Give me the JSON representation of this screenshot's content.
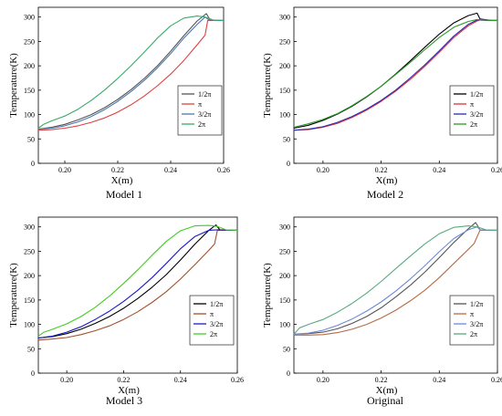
{
  "chart_data": [
    {
      "type": "line",
      "caption": "Model 1",
      "xlabel": "X(m)",
      "ylabel": "Temperature(K)",
      "xlim": [
        0.19,
        0.26
      ],
      "ylim": [
        0,
        320
      ],
      "xticks": [
        "0.20",
        "0.22",
        "0.24",
        "0.26"
      ],
      "xtick_values": [
        0.2,
        0.22,
        0.24,
        0.26
      ],
      "yticks": [
        "0",
        "50",
        "100",
        "150",
        "200",
        "250",
        "300"
      ],
      "ytick_values": [
        0,
        50,
        100,
        150,
        200,
        250,
        300
      ],
      "legend_position": "bottom-right",
      "series": [
        {
          "name": "1/2π",
          "color": "#555555",
          "x": [
            0.19,
            0.195,
            0.2,
            0.205,
            0.21,
            0.215,
            0.22,
            0.225,
            0.23,
            0.235,
            0.24,
            0.245,
            0.25,
            0.2535,
            0.255,
            0.258,
            0.26
          ],
          "y": [
            70,
            74,
            80,
            89,
            100,
            114,
            131,
            151,
            174,
            200,
            230,
            262,
            292,
            307,
            293,
            293,
            293
          ]
        },
        {
          "name": "π",
          "color": "#e04040",
          "x": [
            0.19,
            0.195,
            0.2,
            0.205,
            0.21,
            0.215,
            0.22,
            0.225,
            0.23,
            0.235,
            0.24,
            0.245,
            0.25,
            0.253,
            0.254,
            0.258,
            0.26
          ],
          "y": [
            68,
            69,
            72,
            77,
            84,
            93,
            105,
            120,
            138,
            159,
            183,
            211,
            243,
            263,
            293,
            293,
            293
          ]
        },
        {
          "name": "3/2π",
          "color": "#4a78b0",
          "x": [
            0.19,
            0.195,
            0.2,
            0.205,
            0.21,
            0.215,
            0.22,
            0.225,
            0.23,
            0.235,
            0.24,
            0.245,
            0.25,
            0.253,
            0.2545,
            0.258,
            0.26
          ],
          "y": [
            70,
            72,
            77,
            85,
            96,
            110,
            127,
            147,
            170,
            196,
            225,
            257,
            285,
            300,
            294,
            293,
            293
          ]
        },
        {
          "name": "2π",
          "color": "#3aaa6a",
          "x": [
            0.19,
            0.192,
            0.195,
            0.2,
            0.205,
            0.21,
            0.215,
            0.22,
            0.225,
            0.23,
            0.235,
            0.24,
            0.245,
            0.25,
            0.253,
            0.256,
            0.26
          ],
          "y": [
            72,
            80,
            87,
            97,
            111,
            129,
            150,
            174,
            200,
            228,
            257,
            282,
            298,
            302,
            300,
            294,
            293
          ]
        }
      ]
    },
    {
      "type": "line",
      "caption": "Model 2",
      "xlabel": "X(m)",
      "ylabel": "Temperature(K)",
      "xlim": [
        0.19,
        0.26
      ],
      "ylim": [
        0,
        320
      ],
      "xticks": [
        "0.20",
        "0.22",
        "0.24",
        "0.26"
      ],
      "xtick_values": [
        0.2,
        0.22,
        0.24,
        0.26
      ],
      "yticks": [
        "0",
        "50",
        "100",
        "150",
        "200",
        "250",
        "300"
      ],
      "ytick_values": [
        0,
        50,
        100,
        150,
        200,
        250,
        300
      ],
      "legend_position": "bottom-right",
      "series": [
        {
          "name": "1/2π",
          "color": "#000000",
          "x": [
            0.19,
            0.195,
            0.2,
            0.205,
            0.21,
            0.215,
            0.22,
            0.225,
            0.23,
            0.235,
            0.24,
            0.245,
            0.25,
            0.253,
            0.254,
            0.258,
            0.26
          ],
          "y": [
            72,
            78,
            88,
            101,
            117,
            136,
            158,
            183,
            210,
            238,
            265,
            288,
            303,
            308,
            296,
            293,
            293
          ]
        },
        {
          "name": "π",
          "color": "#e03030",
          "x": [
            0.19,
            0.195,
            0.2,
            0.205,
            0.21,
            0.215,
            0.22,
            0.225,
            0.23,
            0.235,
            0.24,
            0.245,
            0.25,
            0.253,
            0.254,
            0.258,
            0.26
          ],
          "y": [
            68,
            69,
            74,
            82,
            94,
            109,
            127,
            148,
            172,
            199,
            228,
            258,
            282,
            292,
            294,
            293,
            293
          ]
        },
        {
          "name": "3/2π",
          "color": "#2a2ab0",
          "x": [
            0.19,
            0.195,
            0.2,
            0.205,
            0.21,
            0.215,
            0.22,
            0.225,
            0.23,
            0.235,
            0.24,
            0.245,
            0.25,
            0.253,
            0.254,
            0.258,
            0.26
          ],
          "y": [
            68,
            70,
            75,
            84,
            96,
            111,
            129,
            150,
            175,
            202,
            231,
            261,
            285,
            294,
            294,
            293,
            293
          ]
        },
        {
          "name": "2π",
          "color": "#2a9a2a",
          "x": [
            0.19,
            0.195,
            0.2,
            0.205,
            0.21,
            0.215,
            0.22,
            0.225,
            0.23,
            0.235,
            0.24,
            0.245,
            0.25,
            0.253,
            0.256,
            0.258,
            0.26
          ],
          "y": [
            74,
            81,
            90,
            102,
            118,
            137,
            158,
            182,
            207,
            233,
            258,
            279,
            291,
            295,
            294,
            293,
            293
          ]
        }
      ]
    },
    {
      "type": "line",
      "caption": "Model 3",
      "xlabel": "X(m)",
      "ylabel": "Temperature(K)",
      "xlim": [
        0.19,
        0.26
      ],
      "ylim": [
        0,
        320
      ],
      "xticks": [
        "0.20",
        "0.22",
        "0.24",
        "0.26"
      ],
      "xtick_values": [
        0.2,
        0.22,
        0.24,
        0.26
      ],
      "yticks": [
        "0",
        "50",
        "100",
        "150",
        "200",
        "250",
        "300"
      ],
      "ytick_values": [
        0,
        50,
        100,
        150,
        200,
        250,
        300
      ],
      "legend_position": "bottom-right",
      "series": [
        {
          "name": "1/2π",
          "color": "#000000",
          "x": [
            0.19,
            0.195,
            0.2,
            0.205,
            0.21,
            0.215,
            0.22,
            0.225,
            0.23,
            0.235,
            0.24,
            0.245,
            0.25,
            0.2525,
            0.254,
            0.258,
            0.26
          ],
          "y": [
            72,
            75,
            81,
            90,
            102,
            116,
            133,
            153,
            176,
            202,
            232,
            264,
            293,
            304,
            293,
            293,
            293
          ]
        },
        {
          "name": "π",
          "color": "#a0522d",
          "x": [
            0.19,
            0.195,
            0.2,
            0.205,
            0.21,
            0.215,
            0.22,
            0.225,
            0.23,
            0.235,
            0.24,
            0.245,
            0.25,
            0.252,
            0.253,
            0.258,
            0.26
          ],
          "y": [
            68,
            70,
            73,
            79,
            87,
            97,
            110,
            126,
            145,
            167,
            193,
            222,
            252,
            265,
            293,
            293,
            293
          ]
        },
        {
          "name": "3/2π",
          "color": "#1a1ac8",
          "x": [
            0.19,
            0.195,
            0.2,
            0.205,
            0.21,
            0.215,
            0.22,
            0.225,
            0.23,
            0.235,
            0.24,
            0.245,
            0.25,
            0.253,
            0.254,
            0.258,
            0.26
          ],
          "y": [
            72,
            76,
            84,
            95,
            110,
            127,
            147,
            170,
            196,
            225,
            255,
            280,
            293,
            294,
            294,
            293,
            293
          ]
        },
        {
          "name": "2π",
          "color": "#44cc22",
          "x": [
            0.19,
            0.192,
            0.195,
            0.2,
            0.205,
            0.21,
            0.215,
            0.22,
            0.225,
            0.23,
            0.235,
            0.24,
            0.245,
            0.25,
            0.253,
            0.256,
            0.26
          ],
          "y": [
            76,
            84,
            90,
            101,
            116,
            135,
            158,
            184,
            212,
            242,
            270,
            292,
            302,
            303,
            301,
            294,
            293
          ]
        }
      ]
    },
    {
      "type": "line",
      "caption": "Original",
      "xlabel": "X(m)",
      "ylabel": "Temperature(K)",
      "xlim": [
        0.19,
        0.26
      ],
      "ylim": [
        0,
        320
      ],
      "xticks": [
        "0.20",
        "0.22",
        "0.24",
        "0.26"
      ],
      "xtick_values": [
        0.2,
        0.22,
        0.24,
        0.26
      ],
      "yticks": [
        "0",
        "50",
        "100",
        "150",
        "200",
        "250",
        "300"
      ],
      "ytick_values": [
        0,
        50,
        100,
        150,
        200,
        250,
        300
      ],
      "legend_position": "bottom-right",
      "series": [
        {
          "name": "1/2π",
          "color": "#555555",
          "x": [
            0.19,
            0.195,
            0.2,
            0.205,
            0.21,
            0.215,
            0.22,
            0.225,
            0.23,
            0.235,
            0.24,
            0.245,
            0.25,
            0.2525,
            0.254,
            0.258,
            0.26
          ],
          "y": [
            80,
            81,
            84,
            91,
            102,
            116,
            134,
            156,
            180,
            207,
            237,
            268,
            296,
            309,
            294,
            293,
            293
          ]
        },
        {
          "name": "π",
          "color": "#b86a44",
          "x": [
            0.19,
            0.195,
            0.2,
            0.205,
            0.21,
            0.215,
            0.22,
            0.225,
            0.23,
            0.235,
            0.24,
            0.245,
            0.25,
            0.252,
            0.254,
            0.258,
            0.26
          ],
          "y": [
            78,
            78,
            79,
            83,
            90,
            100,
            113,
            129,
            148,
            170,
            196,
            225,
            254,
            266,
            293,
            293,
            293
          ]
        },
        {
          "name": "3/2π",
          "color": "#6a8ad8",
          "x": [
            0.19,
            0.195,
            0.2,
            0.205,
            0.21,
            0.215,
            0.22,
            0.225,
            0.23,
            0.235,
            0.24,
            0.245,
            0.25,
            0.253,
            0.254,
            0.258,
            0.26
          ],
          "y": [
            80,
            82,
            88,
            98,
            111,
            127,
            146,
            168,
            193,
            220,
            249,
            276,
            294,
            300,
            294,
            293,
            293
          ]
        },
        {
          "name": "2π",
          "color": "#5aaa80",
          "x": [
            0.19,
            0.192,
            0.195,
            0.2,
            0.205,
            0.21,
            0.215,
            0.22,
            0.225,
            0.23,
            0.235,
            0.24,
            0.245,
            0.25,
            0.253,
            0.256,
            0.26
          ],
          "y": [
            80,
            93,
            100,
            110,
            125,
            143,
            164,
            188,
            214,
            240,
            265,
            286,
            299,
            302,
            300,
            294,
            293
          ]
        }
      ]
    }
  ]
}
